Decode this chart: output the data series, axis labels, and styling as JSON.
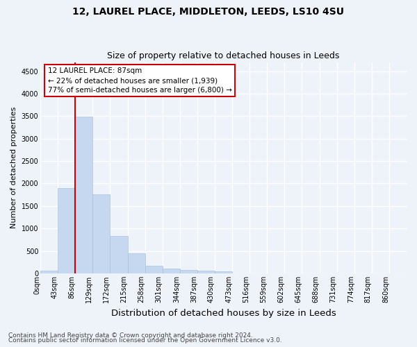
{
  "title1": "12, LAUREL PLACE, MIDDLETON, LEEDS, LS10 4SU",
  "title2": "Size of property relative to detached houses in Leeds",
  "xlabel": "Distribution of detached houses by size in Leeds",
  "ylabel": "Number of detached properties",
  "categories": [
    "0sqm",
    "43sqm",
    "86sqm",
    "129sqm",
    "172sqm",
    "215sqm",
    "258sqm",
    "301sqm",
    "344sqm",
    "387sqm",
    "430sqm",
    "473sqm",
    "516sqm",
    "559sqm",
    "602sqm",
    "645sqm",
    "688sqm",
    "731sqm",
    "774sqm",
    "817sqm",
    "860sqm"
  ],
  "values": [
    55,
    1900,
    3490,
    1760,
    840,
    450,
    165,
    105,
    80,
    55,
    45,
    0,
    0,
    0,
    0,
    0,
    0,
    0,
    0,
    0,
    0
  ],
  "bar_color": "#c5d8f0",
  "bar_edge_color": "#a0bcd8",
  "annotation_box_text": "12 LAUREL PLACE: 87sqm\n← 22% of detached houses are smaller (1,939)\n77% of semi-detached houses are larger (6,800) →",
  "annotation_box_color": "#cc0000",
  "ylim": [
    0,
    4700
  ],
  "yticks": [
    0,
    500,
    1000,
    1500,
    2000,
    2500,
    3000,
    3500,
    4000,
    4500
  ],
  "footer1": "Contains HM Land Registry data © Crown copyright and database right 2024.",
  "footer2": "Contains public sector information licensed under the Open Government Licence v3.0.",
  "bg_color": "#eef2f9",
  "plot_bg_color": "#eef2f9",
  "grid_color": "#ffffff",
  "title1_fontsize": 10,
  "title2_fontsize": 9,
  "xlabel_fontsize": 9.5,
  "ylabel_fontsize": 8,
  "tick_fontsize": 7,
  "footer_fontsize": 6.5,
  "highlight_bar_index": 2
}
